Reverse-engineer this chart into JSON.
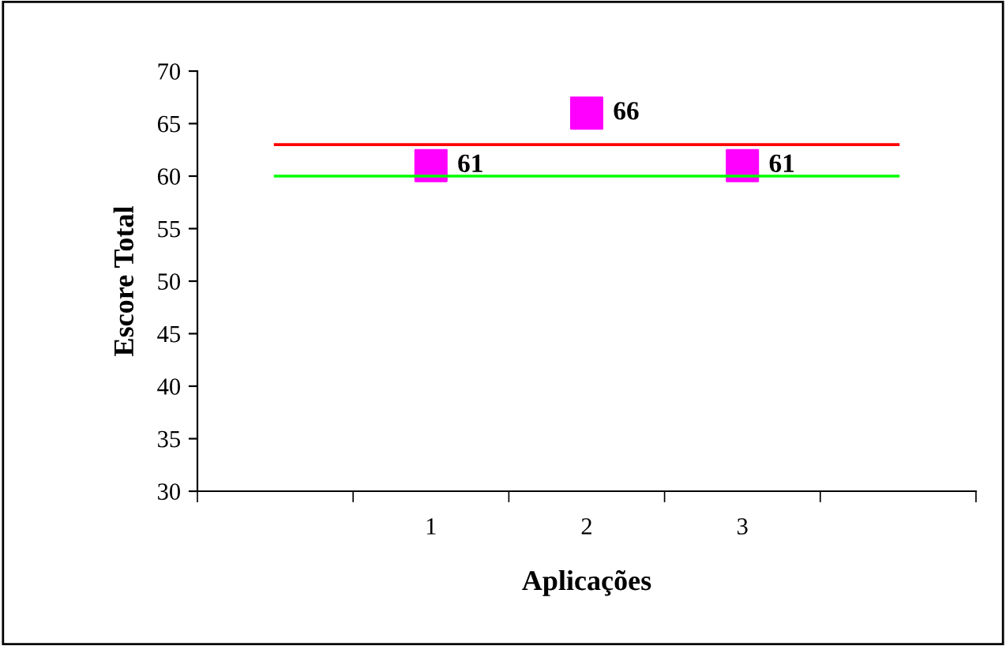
{
  "chart_data": {
    "type": "scatter",
    "xlabel": "Aplicações",
    "ylabel": "Escore Total",
    "categories": [
      null,
      "1",
      "2",
      "3",
      null
    ],
    "series": [
      {
        "type": "line",
        "color": "#ff0000",
        "values": [
          63,
          63,
          63,
          63,
          63
        ],
        "marker": "none"
      },
      {
        "type": "line",
        "color": "#00ff00",
        "values": [
          60,
          60,
          60,
          60,
          60
        ],
        "marker": "none"
      },
      {
        "color": "#ff00ff",
        "values": [
          null,
          61,
          66,
          61,
          null
        ],
        "marker": "square",
        "value_labels": [
          null,
          "61",
          "66",
          "61",
          null
        ]
      }
    ],
    "ylim": [
      30,
      70
    ],
    "yticks": [
      30,
      35,
      40,
      45,
      50,
      55,
      60,
      65,
      70
    ],
    "grid": false,
    "legend": false
  }
}
